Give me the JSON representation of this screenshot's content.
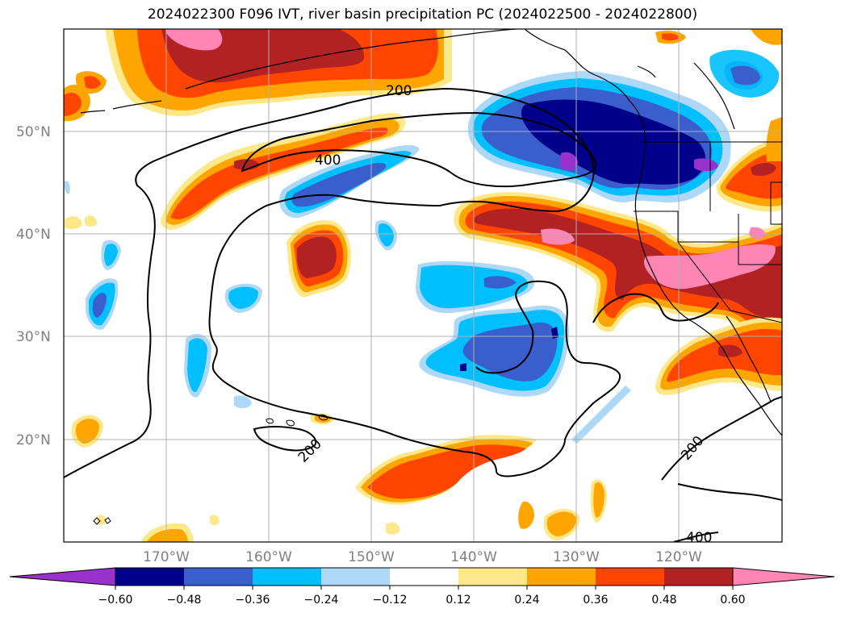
{
  "title": "2024022300 F096 IVT, river basin precipitation PC (2024022500 - 2024022800)",
  "lat_labels": [
    "50°N",
    "40°N",
    "30°N",
    "20°N"
  ],
  "lon_labels": [
    "170°W",
    "160°W",
    "150°W",
    "140°W",
    "130°W",
    "120°W"
  ],
  "contour_labels": [
    "200",
    "400",
    "200",
    "200",
    "400"
  ],
  "colorbar": {
    "ticks": [
      "−0.60",
      "−0.48",
      "−0.36",
      "−0.24",
      "−0.12",
      "0.12",
      "0.24",
      "0.36",
      "0.48",
      "0.60"
    ],
    "colors": [
      "#9932cc",
      "#00008b",
      "#3a5fcd",
      "#00bfff",
      "#add8f8",
      "#ffffff",
      "#ffe88a",
      "#ffa500",
      "#ff4500",
      "#b22222",
      "#ff85b5"
    ]
  }
}
